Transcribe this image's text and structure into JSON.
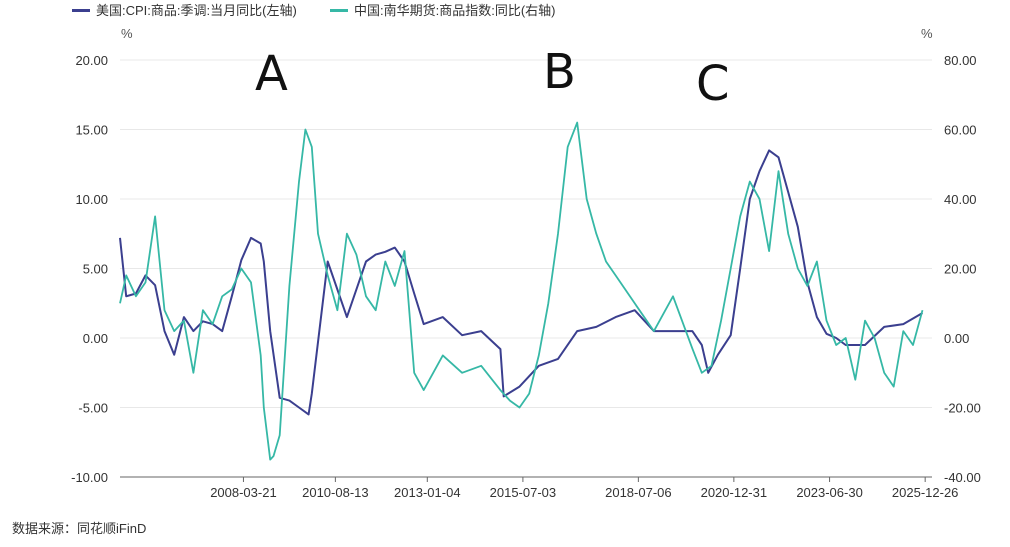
{
  "source": "数据来源：同花顺iFinD",
  "chart_data": {
    "type": "line",
    "legend_position": "top-left",
    "grid": true,
    "left_axis": {
      "unit": "%",
      "ylim": [
        -10,
        20
      ],
      "ticks": [
        "20.00",
        "15.00",
        "10.00",
        "5.00",
        "0.00",
        "-5.00",
        "-10.00"
      ]
    },
    "right_axis": {
      "unit": "%",
      "ylim": [
        -40,
        80
      ],
      "ticks": [
        "80.00",
        "60.00",
        "40.00",
        "20.00",
        "0.00",
        "-20.00",
        "-40.00"
      ]
    },
    "x_ticks": [
      "2008-03-21",
      "2010-08-13",
      "2013-01-04",
      "2015-07-03",
      "2018-07-06",
      "2020-12-31",
      "2023-06-30",
      "2025-12-26"
    ],
    "annotations": [
      "A",
      "B",
      "C"
    ],
    "series": [
      {
        "name": "美国:CPI:商品:季调:当月同比(左轴)",
        "axis": "left",
        "color": "#3b3f8f",
        "x": [
          "2005-01",
          "2005-03",
          "2005-06",
          "2005-09",
          "2005-12",
          "2006-03",
          "2006-06",
          "2006-09",
          "2006-12",
          "2007-03",
          "2007-06",
          "2007-09",
          "2007-12",
          "2008-03",
          "2008-06",
          "2008-09",
          "2008-10",
          "2008-12",
          "2009-03",
          "2009-06",
          "2009-09",
          "2009-12",
          "2010-01",
          "2010-06",
          "2010-12",
          "2011-03",
          "2011-06",
          "2011-09",
          "2011-12",
          "2012-03",
          "2012-06",
          "2012-09",
          "2012-12",
          "2013-06",
          "2013-12",
          "2014-06",
          "2014-12",
          "2015-01",
          "2015-06",
          "2015-12",
          "2016-06",
          "2016-12",
          "2017-06",
          "2017-12",
          "2018-06",
          "2018-12",
          "2019-06",
          "2019-12",
          "2020-03",
          "2020-05",
          "2020-08",
          "2020-12",
          "2021-03",
          "2021-06",
          "2021-09",
          "2021-12",
          "2022-03",
          "2022-06",
          "2022-09",
          "2022-12",
          "2023-03",
          "2023-06",
          "2023-09",
          "2023-12",
          "2024-06",
          "2024-12",
          "2025-06",
          "2025-12"
        ],
        "values": [
          7.2,
          3.0,
          3.2,
          4.5,
          3.8,
          0.5,
          -1.2,
          1.5,
          0.5,
          1.2,
          1.0,
          0.5,
          3.0,
          5.6,
          7.2,
          6.8,
          5.5,
          0.5,
          -4.3,
          -4.5,
          -5.0,
          -5.5,
          -4.0,
          5.5,
          1.5,
          3.5,
          5.5,
          6.0,
          6.2,
          6.5,
          5.5,
          3.2,
          1.0,
          1.5,
          0.2,
          0.5,
          -0.8,
          -4.2,
          -3.5,
          -2.0,
          -1.5,
          0.5,
          0.8,
          1.5,
          2.0,
          0.5,
          0.5,
          0.5,
          -0.5,
          -2.5,
          -1.2,
          0.2,
          5.0,
          10.0,
          12.0,
          13.5,
          13.0,
          10.5,
          8.0,
          4.0,
          1.5,
          0.3,
          0.0,
          -0.5,
          -0.5,
          0.8,
          1.0,
          1.8
        ]
      },
      {
        "name": "中国:南华期货:商品指数:同比(右轴)",
        "axis": "right",
        "color": "#36b8a6",
        "x": [
          "2005-01",
          "2005-03",
          "2005-06",
          "2005-09",
          "2005-12",
          "2006-03",
          "2006-06",
          "2006-09",
          "2006-12",
          "2007-03",
          "2007-06",
          "2007-09",
          "2007-12",
          "2008-03",
          "2008-06",
          "2008-09",
          "2008-10",
          "2008-12",
          "2009-01",
          "2009-03",
          "2009-06",
          "2009-09",
          "2009-11",
          "2010-01",
          "2010-03",
          "2010-06",
          "2010-09",
          "2010-12",
          "2011-03",
          "2011-06",
          "2011-09",
          "2011-12",
          "2012-03",
          "2012-06",
          "2012-09",
          "2012-12",
          "2013-06",
          "2013-12",
          "2014-06",
          "2014-12",
          "2015-03",
          "2015-06",
          "2015-09",
          "2015-12",
          "2016-03",
          "2016-06",
          "2016-09",
          "2016-12",
          "2017-03",
          "2017-06",
          "2017-09",
          "2017-12",
          "2018-06",
          "2018-12",
          "2019-06",
          "2019-12",
          "2020-03",
          "2020-06",
          "2020-09",
          "2020-12",
          "2021-03",
          "2021-06",
          "2021-09",
          "2021-12",
          "2022-03",
          "2022-06",
          "2022-09",
          "2022-12",
          "2023-03",
          "2023-06",
          "2023-09",
          "2023-12",
          "2024-03",
          "2024-06",
          "2024-09",
          "2024-12",
          "2025-03",
          "2025-06",
          "2025-09",
          "2025-12"
        ],
        "values": [
          10,
          18,
          12,
          16,
          35,
          8,
          2,
          5,
          -10,
          8,
          4,
          12,
          14,
          20,
          16,
          -5,
          -20,
          -35,
          -34,
          -28,
          15,
          45,
          60,
          55,
          30,
          18,
          8,
          30,
          24,
          12,
          8,
          22,
          15,
          25,
          -10,
          -15,
          -5,
          -10,
          -8,
          -15,
          -18,
          -20,
          -16,
          -5,
          10,
          30,
          55,
          62,
          40,
          30,
          22,
          18,
          10,
          2,
          12,
          -3,
          -10,
          -8,
          5,
          20,
          35,
          45,
          40,
          25,
          48,
          30,
          20,
          15,
          22,
          5,
          -2,
          0,
          -12,
          5,
          0,
          -10,
          -14,
          2,
          -2,
          8
        ]
      }
    ]
  }
}
